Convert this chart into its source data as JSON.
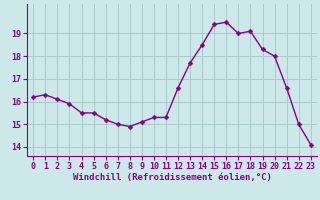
{
  "x": [
    0,
    1,
    2,
    3,
    4,
    5,
    6,
    7,
    8,
    9,
    10,
    11,
    12,
    13,
    14,
    15,
    16,
    17,
    18,
    19,
    20,
    21,
    22,
    23
  ],
  "y": [
    16.2,
    16.3,
    16.1,
    15.9,
    15.5,
    15.5,
    15.2,
    15.0,
    14.9,
    15.1,
    15.3,
    15.3,
    16.6,
    17.7,
    18.5,
    19.4,
    19.5,
    19.0,
    19.1,
    18.3,
    18.0,
    16.6,
    15.0,
    14.1
  ],
  "line_color": "#880088",
  "marker": "D",
  "marker_size": 2.5,
  "line_width": 1.0,
  "bg_color": "#cce8e8",
  "grid_color": "#aacccc",
  "xlabel": "Windchill (Refroidissement éolien,°C)",
  "xlabel_color": "#880088",
  "xlabel_fontsize": 6.5,
  "tick_color": "#880088",
  "tick_fontsize": 6.0,
  "ytick_values": [
    14,
    15,
    16,
    17,
    18,
    19
  ],
  "ylim": [
    13.6,
    20.3
  ],
  "xlim": [
    -0.5,
    23.5
  ],
  "bottom_bar_color": "#880088",
  "bottom_bar_height": 0.18
}
